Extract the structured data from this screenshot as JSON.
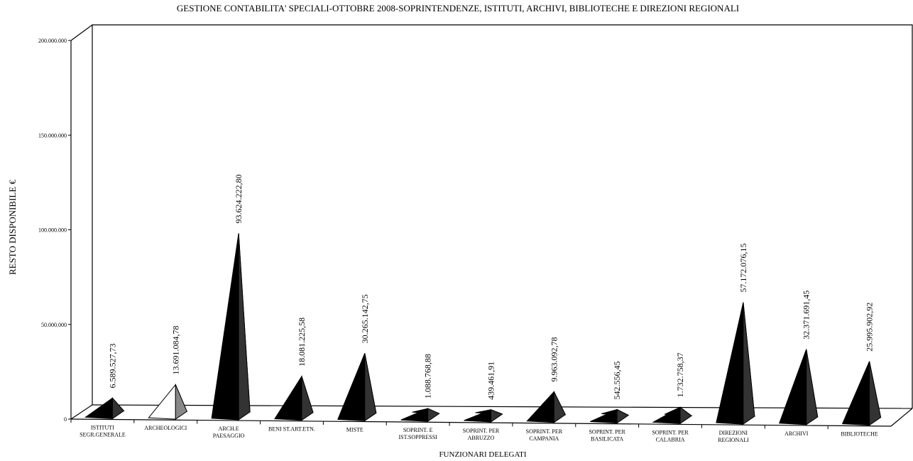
{
  "chart_data": {
    "type": "pyramid",
    "title": "GESTIONE CONTABILITA' SPECIALI-OTTOBRE 2008-SOPRINTENDENZE, ISTITUTI, ARCHIVI, BIBLIOTECHE E DIREZIONI REGIONALI",
    "y_label": "RESTO DISPONIBILE €",
    "x_label": "FUNZIONARI DELEGATI",
    "categories": [
      "ISTITUTI\nSEGR.GENERALE",
      "ARCHEOLOGICI",
      "ARCH.E\nPAESAGGIO",
      "BENI ST.ART.ETN.",
      "MISTE",
      "SOPRINT. E\nIST.SOPPRESSI",
      "SOPRINT. PER\nABRUZZO",
      "SOPRINT. PER\nCAMPANIA",
      "SOPRINT. PER\nBASILICATA",
      "SOPRINT. PER\nCALABRIA",
      "DIREZIONI\nREGIONALI",
      "ARCHIVI",
      "BIBLIOTECHE"
    ],
    "values": [
      6589527.73,
      13691084.78,
      93624222.8,
      18081225.58,
      30265142.75,
      1088768.88,
      439461.91,
      9963092.78,
      542556.45,
      1732758.37,
      57172076.15,
      32371691.45,
      25995902.92
    ],
    "value_labels": [
      "6.589.527,73",
      "13.691.084,78",
      "93.624.222,80",
      "18.081.225,58",
      "30.265.142,75",
      "1.088.768,88",
      "439.461,91",
      "9.963.092,78",
      "542.556,45",
      "1.732.758,37",
      "57.172.076,15",
      "32.371.691,45",
      "25.995.902,92"
    ],
    "colors": [
      "#000000",
      "#ffffff",
      "#000000",
      "#000000",
      "#000000",
      "#000000",
      "#000000",
      "#000000",
      "#000000",
      "#000000",
      "#000000",
      "#000000",
      "#000000"
    ],
    "ylim": [
      0,
      200000000
    ],
    "yticks": [
      0,
      {
        "value": 50000000,
        "label": "50.000.000"
      },
      {
        "value": 100000000,
        "label": "100.000.000"
      },
      {
        "value": 150000000,
        "label": "150.000.000"
      },
      {
        "value": 200000000,
        "label": "200.000.000"
      }
    ]
  }
}
